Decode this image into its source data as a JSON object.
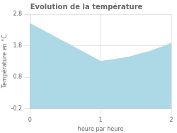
{
  "chart_data": {
    "type": "area",
    "title": "Evolution de la température",
    "xlabel": "heure par heure",
    "ylabel": "Température en °C",
    "x": [
      0,
      0.1,
      0.2,
      0.3,
      0.4,
      0.5,
      0.6,
      0.7,
      0.8,
      0.9,
      1.0,
      1.1,
      1.2,
      1.3,
      1.4,
      1.5,
      1.6,
      1.7,
      1.8,
      1.9,
      2.0
    ],
    "values": [
      2.5,
      2.38,
      2.26,
      2.14,
      2.02,
      1.9,
      1.78,
      1.66,
      1.54,
      1.42,
      1.3,
      1.33,
      1.36,
      1.4,
      1.44,
      1.5,
      1.56,
      1.62,
      1.7,
      1.78,
      1.88
    ],
    "color": "#add8e6",
    "xlim": [
      0,
      2
    ],
    "xticks": [
      0,
      1,
      2
    ],
    "ylim": [
      -0.2,
      2.8
    ],
    "yticks": [
      -0.2,
      0.8,
      1.8,
      2.8
    ],
    "grid": true
  }
}
